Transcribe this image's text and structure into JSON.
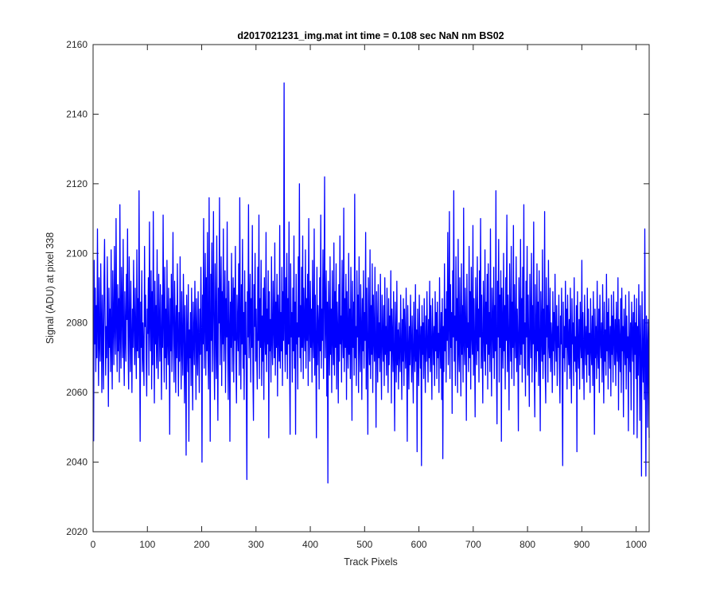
{
  "chart_data": {
    "type": "line",
    "title": "d2017021231_img.mat int time = 0.108 sec  NaN nm BS02",
    "xlabel": "Track Pixels",
    "ylabel": "Signal (ADU) at pixel 338",
    "xlim": [
      0,
      1024
    ],
    "ylim": [
      2020,
      2160
    ],
    "xticks": [
      0,
      100,
      200,
      300,
      400,
      500,
      600,
      700,
      800,
      900,
      1000
    ],
    "yticks": [
      2020,
      2040,
      2060,
      2080,
      2100,
      2120,
      2140,
      2160
    ],
    "grid": false,
    "legend": "none",
    "series": [
      {
        "color": "#0000ff",
        "x_start": 1,
        "x_step": 1,
        "values": [
          2046,
          2098,
          2074,
          2090,
          2066,
          2085,
          2070,
          2107,
          2079,
          2062,
          2093,
          2074,
          2069,
          2097,
          2081,
          2060,
          2088,
          2075,
          2061,
          2092,
          2104,
          2081,
          2065,
          2079,
          2070,
          2099,
          2077,
          2056,
          2090,
          2073,
          2084,
          2066,
          2101,
          2073,
          2061,
          2095,
          2080,
          2068,
          2102,
          2079,
          2071,
          2110,
          2080,
          2066,
          2091,
          2072,
          2087,
          2063,
          2114,
          2077,
          2067,
          2096,
          2083,
          2070,
          2104,
          2074,
          2062,
          2089,
          2078,
          2069,
          2094,
          2081,
          2107,
          2072,
          2061,
          2099,
          2080,
          2066,
          2092,
          2076,
          2060,
          2084,
          2073,
          2098,
          2079,
          2068,
          2090,
          2075,
          2064,
          2101,
          2072,
          2087,
          2070,
          2118,
          2078,
          2046,
          2086,
          2073,
          2095,
          2066,
          2080,
          2071,
          2062,
          2102,
          2079,
          2088,
          2070,
          2059,
          2084,
          2077,
          2093,
          2065,
          2109,
          2080,
          2072,
          2095,
          2061,
          2089,
          2068,
          2112,
          2078,
          2057,
          2092,
          2074,
          2085,
          2067,
          2101,
          2073,
          2064,
          2094,
          2080,
          2069,
          2091,
          2076,
          2058,
          2088,
          2073,
          2111,
          2079,
          2063,
          2096,
          2070,
          2084,
          2061,
          2098,
          2075,
          2068,
          2090,
          2078,
          2048,
          2087,
          2072,
          2094,
          2066,
          2081,
          2106,
          2074,
          2063,
          2092,
          2079,
          2060,
          2085,
          2070,
          2097,
          2076,
          2059,
          2083,
          2069,
          2099,
          2075,
          2061,
          2089,
          2073,
          2065,
          2094,
          2080,
          2057,
          2085,
          2071,
          2042,
          2088,
          2074,
          2066,
          2091,
          2046,
          2078,
          2070,
          2083,
          2062,
          2090,
          2073,
          2055,
          2086,
          2076,
          2068,
          2092,
          2078,
          2058,
          2087,
          2073,
          2065,
          2089,
          2075,
          2060,
          2084,
          2071,
          2096,
          2077,
          2040,
          2088,
          2074,
          2110,
          2067,
          2081,
          2100,
          2065,
          2093,
          2072,
          2106,
          2070,
          2061,
          2116,
          2078,
          2046,
          2094,
          2075,
          2103,
          2066,
          2086,
          2112,
          2071,
          2058,
          2097,
          2079,
          2064,
          2105,
          2073,
          2052,
          2090,
          2080,
          2116,
          2068,
          2084,
          2099,
          2062,
          2089,
          2074,
          2107,
          2069,
          2081,
          2095,
          2060,
          2087,
          2076,
          2109,
          2072,
          2058,
          2092,
          2079,
          2046,
          2086,
          2073,
          2100,
          2066,
          2082,
          2093,
          2063,
          2090,
          2075,
          2102,
          2069,
          2057,
          2088,
          2079,
          2072,
          2097,
          2065,
          2116,
          2080,
          2061,
          2091,
          2074,
          2104,
          2067,
          2083,
          2058,
          2095,
          2071,
          2086,
          2062,
          2035,
          2089,
          2076,
          2114,
          2070,
          2081,
          2094,
          2063,
          2087,
          2073,
          2108,
          2066,
          2052,
          2091,
          2079,
          2100,
          2069,
          2084,
          2071,
          2061,
          2096,
          2075,
          2111,
          2064,
          2087,
          2073,
          2098,
          2062,
          2082,
          2069,
          2090,
          2058,
          2093,
          2077,
          2071,
          2106,
          2066,
          2084,
          2074,
          2095,
          2047,
          2089,
          2072,
          2081,
          2063,
          2099,
          2075,
          2068,
          2092,
          2079,
          2070,
          2103,
          2065,
          2086,
          2073,
          2094,
          2059,
          2088,
          2077,
          2069,
          2108,
          2067,
          2083,
          2072,
          2096,
          2062,
          2089,
          2075,
          2149,
          2078,
          2066,
          2093,
          2071,
          2100,
          2064,
          2087,
          2074,
          2109,
          2068,
          2048,
          2097,
          2076,
          2083,
          2063,
          2090,
          2072,
          2105,
          2067,
          2086,
          2048,
          2094,
          2074,
          2080,
          2061,
          2099,
          2076,
          2120,
          2070,
          2085,
          2066,
          2096,
          2073,
          2105,
          2064,
          2090,
          2078,
          2072,
          2101,
          2067,
          2087,
          2075,
          2094,
          2062,
          2110,
          2079,
          2069,
          2092,
          2073,
          2084,
          2063,
          2098,
          2076,
          2070,
          2107,
          2065,
          2088,
          2074,
          2047,
          2096,
          2068,
          2085,
          2079,
          2061,
          2093,
          2072,
          2111,
          2067,
          2084,
          2075,
          2101,
          2064,
          2088,
          2122,
          2070,
          2082,
          2095,
          2059,
          2086,
          2034,
          2092,
          2079,
          2065,
          2099,
          2071,
          2084,
          2060,
          2095,
          2076,
          2068,
          2103,
          2065,
          2089,
          2073,
          2097,
          2061,
          2086,
          2078,
          2057,
          2091,
          2069,
          2105,
          2074,
          2082,
          2063,
          2098,
          2077,
          2070,
          2113,
          2066,
          2087,
          2073,
          2094,
          2058,
          2089,
          2075,
          2067,
          2100,
          2071,
          2084,
          2064,
          2096,
          2078,
          2052,
          2092,
          2073,
          2086,
          2065,
          2117,
          2070,
          2079,
          2062,
          2095,
          2076,
          2088,
          2060,
          2099,
          2074,
          2066,
          2091,
          2079,
          2058,
          2087,
          2072,
          2095,
          2067,
          2083,
          2075,
          2106,
          2061,
          2090,
          2073,
          2048,
          2093,
          2077,
          2068,
          2101,
          2064,
          2085,
          2071,
          2097,
          2060,
          2088,
          2076,
          2069,
          2096,
          2072,
          2050,
          2089,
          2078,
          2063,
          2091,
          2070,
          2080,
          2066,
          2094,
          2073,
          2058,
          2088,
          2076,
          2069,
          2085,
          2062,
          2093,
          2071,
          2079,
          2065,
          2090,
          2074,
          2060,
          2087,
          2068,
          2082,
          2072,
          2095,
          2057,
          2084,
          2076,
          2066,
          2089,
          2070,
          2049,
          2086,
          2074,
          2063,
          2092,
          2068,
          2078,
          2061,
          2080,
          2072,
          2066,
          2088,
          2074,
          2058,
          2081,
          2069,
          2087,
          2062,
          2084,
          2075,
          2067,
          2090,
          2071,
          2046,
          2085,
          2073,
          2061,
          2079,
          2068,
          2088,
          2074,
          2063,
          2082,
          2070,
          2057,
          2086,
          2073,
          2066,
          2091,
          2069,
          2078,
          2043,
          2084,
          2072,
          2062,
          2088,
          2075,
          2067,
          2079,
          2039,
          2085,
          2071,
          2080,
          2064,
          2087,
          2073,
          2060,
          2082,
          2069,
          2089,
          2074,
          2063,
          2081,
          2070,
          2092,
          2066,
          2085,
          2073,
          2058,
          2087,
          2076,
          2068,
          2079,
          2062,
          2089,
          2072,
          2083,
          2064,
          2086,
          2070,
          2077,
          2060,
          2093,
          2074,
          2067,
          2083,
          2058,
          2087,
          2041,
          2079,
          2066,
          2097,
          2072,
          2084,
          2063,
          2089,
          2075,
          2106,
          2068,
          2080,
          2112,
          2064,
          2091,
          2073,
          2083,
          2054,
          2095,
          2076,
          2118,
          2069,
          2082,
          2062,
          2099,
          2075,
          2087,
          2060,
          2104,
          2072,
          2066,
          2093,
          2078,
          2059,
          2097,
          2071,
          2085,
          2063,
          2113,
          2074,
          2068,
          2090,
          2079,
          2052,
          2094,
          2073,
          2080,
          2066,
          2102,
          2070,
          2089,
          2061,
          2096,
          2077,
          2071,
          2108,
          2065,
          2087,
          2074,
          2053,
          2093,
          2079,
          2068,
          2099,
          2072,
          2084,
          2063,
          2095,
          2076,
          2110,
          2067,
          2088,
          2073,
          2057,
          2092,
          2078,
          2069,
          2101,
          2065,
          2086,
          2074,
          2094,
          2061,
          2097,
          2071,
          2083,
          2066,
          2107,
          2075,
          2059,
          2090,
          2079,
          2070,
          2096,
          2064,
          2085,
          2072,
          2118,
          2068,
          2051,
          2092,
          2076,
          2104,
          2063,
          2088,
          2073,
          2095,
          2046,
          2090,
          2078,
          2067,
          2100,
          2072,
          2085,
          2061,
          2093,
          2075,
          2111,
          2066,
          2088,
          2074,
          2055,
          2097,
          2079,
          2069,
          2102,
          2064,
          2086,
          2073,
          2108,
          2062,
          2091,
          2077,
          2070,
          2099,
          2066,
          2084,
          2075,
          2049,
          2093,
          2080,
          2068,
          2104,
          2071,
          2087,
          2063,
          2096,
          2074,
          2114,
          2067,
          2080,
          2059,
          2092,
          2076,
          2102,
          2065,
          2088,
          2073,
          2056,
          2094,
          2079,
          2070,
          2100,
          2063,
          2085,
          2074,
          2109,
          2068,
          2053,
          2091,
          2077,
          2066,
          2097,
          2072,
          2086,
          2062,
          2095,
          2075,
          2049,
          2089,
          2078,
          2069,
          2101,
          2064,
          2084,
          2071,
          2112,
          2067,
          2057,
          2093,
          2076,
          2085,
          2063,
          2098,
          2074,
          2070,
          2090,
          2066,
          2080,
          2075,
          2060,
          2089,
          2072,
          2083,
          2065,
          2094,
          2077,
          2069,
          2085,
          2062,
          2079,
          2073,
          2088,
          2067,
          2057,
          2082,
          2074,
          2090,
          2063,
          2039,
          2086,
          2070,
          2079,
          2066,
          2092,
          2073,
          2084,
          2061,
          2088,
          2075,
          2068,
          2081,
          2064,
          2090,
          2072,
          2057,
          2087,
          2074,
          2080,
          2062,
          2093,
          2069,
          2076,
          2066,
          2085,
          2043,
          2089,
          2073,
          2067,
          2081,
          2061,
          2086,
          2075,
          2070,
          2098,
          2064,
          2083,
          2072,
          2058,
          2088,
          2076,
          2068,
          2079,
          2063,
          2090,
          2071,
          2084,
          2065,
          2077,
          2060,
          2087,
          2073,
          2068,
          2082,
          2062,
          2089,
          2074,
          2048,
          2084,
          2070,
          2079,
          2064,
          2092,
          2072,
          2067,
          2084,
          2060,
          2088,
          2076,
          2070,
          2080,
          2063,
          2091,
          2073,
          2057,
          2086,
          2069,
          2078,
          2065,
          2094,
          2072,
          2083,
          2061,
          2087,
          2075,
          2067,
          2079,
          2059,
          2088,
          2071,
          2082,
          2063,
          2089,
          2076,
          2068,
          2081,
          2062,
          2086,
          2073,
          2069,
          2093,
          2055,
          2081,
          2074,
          2066,
          2087,
          2060,
          2090,
          2072,
          2079,
          2053,
          2084,
          2075,
          2068,
          2088,
          2061,
          2082,
          2070,
          2076,
          2049,
          2089,
          2073,
          2066,
          2080,
          2055,
          2086,
          2077,
          2069,
          2083,
          2048,
          2088,
          2071,
          2080,
          2064,
          2087,
          2047,
          2079,
          2065,
          2091,
          2073,
          2052,
          2085,
          2068,
          2036,
          2089,
          2072,
          2063,
          2081,
          2058,
          2107,
          2071,
          2036,
          2082,
          2074,
          2050,
          2081,
          2069,
          2047
        ]
      }
    ]
  }
}
